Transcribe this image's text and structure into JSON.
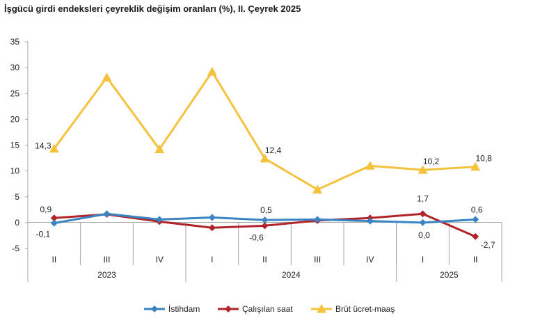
{
  "chart_data": {
    "type": "line",
    "title": "İşgücü girdi endeksleri çeyreklik değişim oranları (%), II. Çeyrek 2025",
    "quarters": [
      "II",
      "III",
      "IV",
      "I",
      "II",
      "III",
      "IV",
      "I",
      "II"
    ],
    "years": [
      {
        "label": "2023",
        "start": 0,
        "end": 2
      },
      {
        "label": "2024",
        "start": 3,
        "end": 6
      },
      {
        "label": "2025",
        "start": 7,
        "end": 8
      }
    ],
    "ylim": [
      -5,
      35
    ],
    "yticks": [
      "35",
      "30",
      "25",
      "20",
      "15",
      "10",
      "5",
      "0",
      "-5"
    ],
    "ytick_values": [
      35,
      30,
      25,
      20,
      15,
      10,
      5,
      0,
      -5
    ],
    "grid": false,
    "legend_position": "bottom",
    "series": [
      {
        "name": "İstihdam",
        "color": "#3a84c4",
        "marker": "diamond",
        "values": [
          -0.1,
          1.7,
          0.6,
          1.0,
          0.5,
          0.6,
          0.3,
          0.0,
          0.6
        ],
        "labels": [
          {
            "index": 0,
            "text": "-0,1"
          },
          {
            "index": 4,
            "text": "0,5"
          },
          {
            "index": 7,
            "text": "0,0"
          },
          {
            "index": 8,
            "text": "0,6"
          }
        ]
      },
      {
        "name": "Çalışılan saat",
        "color": "#b0242a",
        "marker": "diamond",
        "values": [
          0.9,
          1.6,
          0.2,
          -1.0,
          -0.6,
          0.4,
          0.9,
          1.7,
          -2.7
        ],
        "labels": [
          {
            "index": 0,
            "text": "0,9"
          },
          {
            "index": 4,
            "text": "-0,6"
          },
          {
            "index": 7,
            "text": "1,7"
          },
          {
            "index": 8,
            "text": "-2,7"
          }
        ]
      },
      {
        "name": "Brüt ücret-maaş",
        "color": "#f5c23e",
        "marker": "triangle",
        "values": [
          14.3,
          28.1,
          14.2,
          29.2,
          12.4,
          6.4,
          11.0,
          10.2,
          10.8
        ],
        "labels": [
          {
            "index": 0,
            "text": "14,3"
          },
          {
            "index": 4,
            "text": "12,4"
          },
          {
            "index": 7,
            "text": "10,2"
          },
          {
            "index": 8,
            "text": "10,8"
          }
        ]
      }
    ]
  }
}
